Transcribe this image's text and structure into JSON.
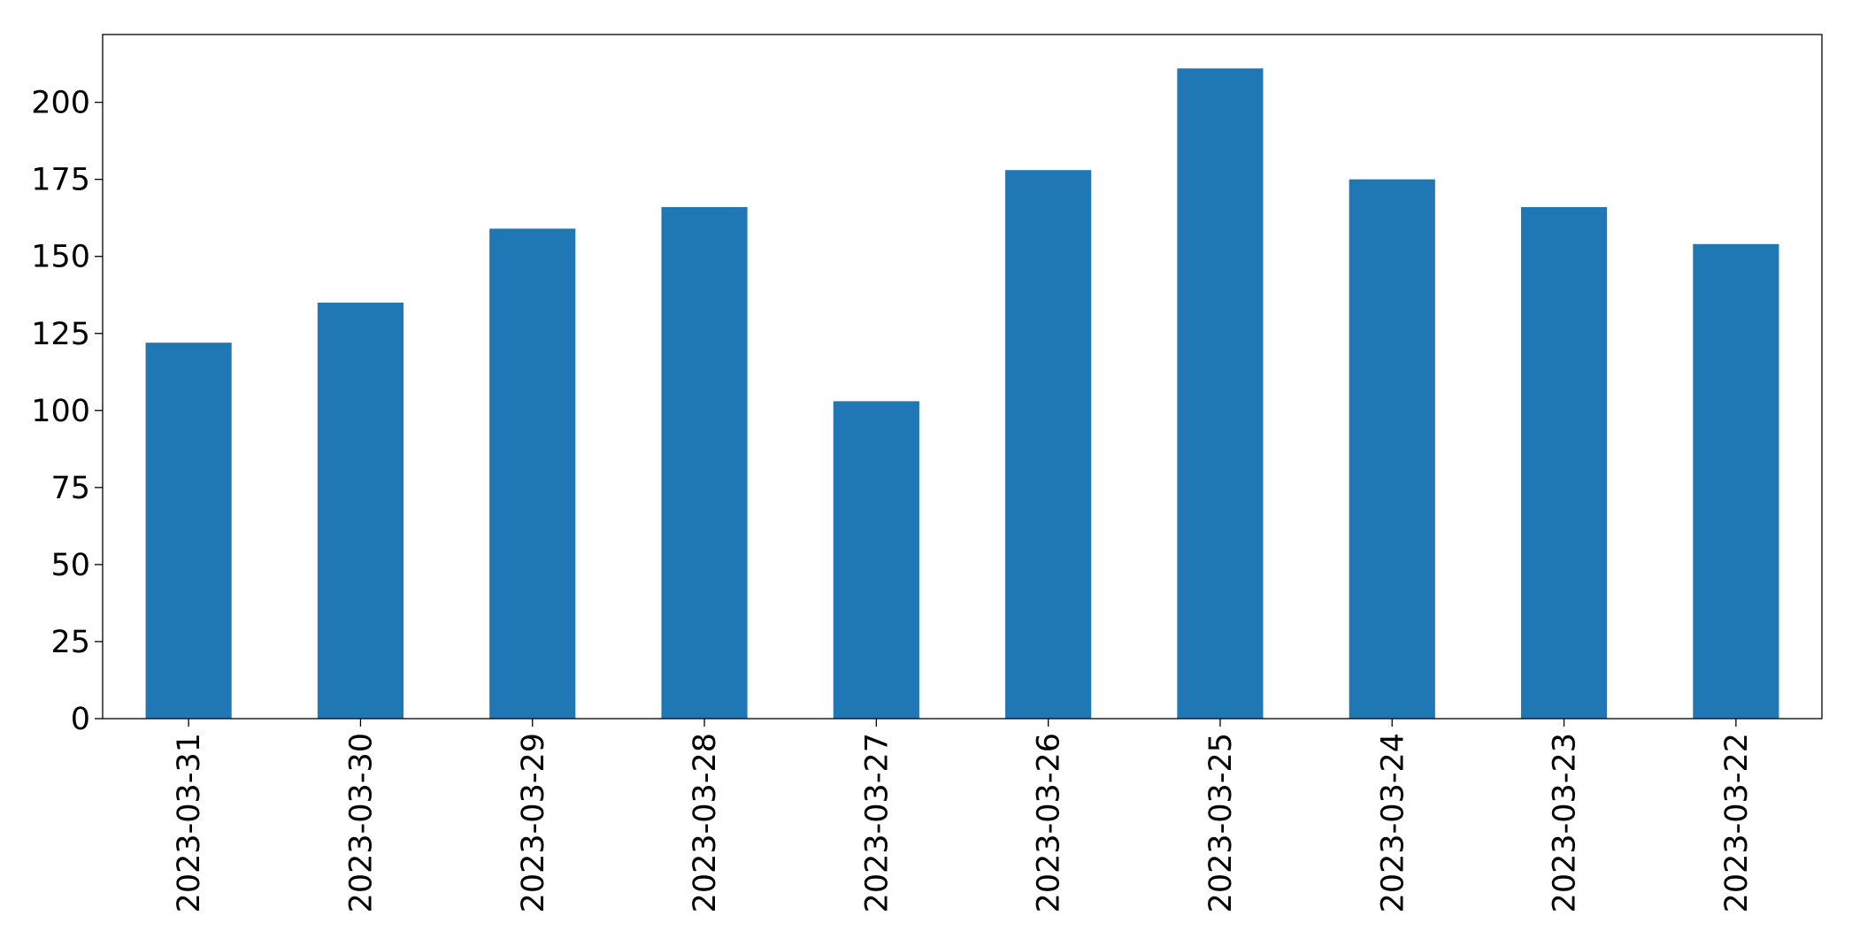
{
  "chart_data": {
    "type": "bar",
    "title": "",
    "xlabel": "",
    "ylabel": "",
    "categories": [
      "2023-03-31",
      "2023-03-30",
      "2023-03-29",
      "2023-03-28",
      "2023-03-27",
      "2023-03-26",
      "2023-03-25",
      "2023-03-24",
      "2023-03-23",
      "2023-03-22"
    ],
    "values": [
      122,
      135,
      159,
      166,
      103,
      178,
      211,
      175,
      166,
      154
    ],
    "ylim": [
      0,
      222
    ],
    "yticks": [
      0,
      25,
      50,
      75,
      100,
      125,
      150,
      175,
      200
    ],
    "grid": false,
    "legend": "none",
    "bar_color": "#1f77b4"
  }
}
